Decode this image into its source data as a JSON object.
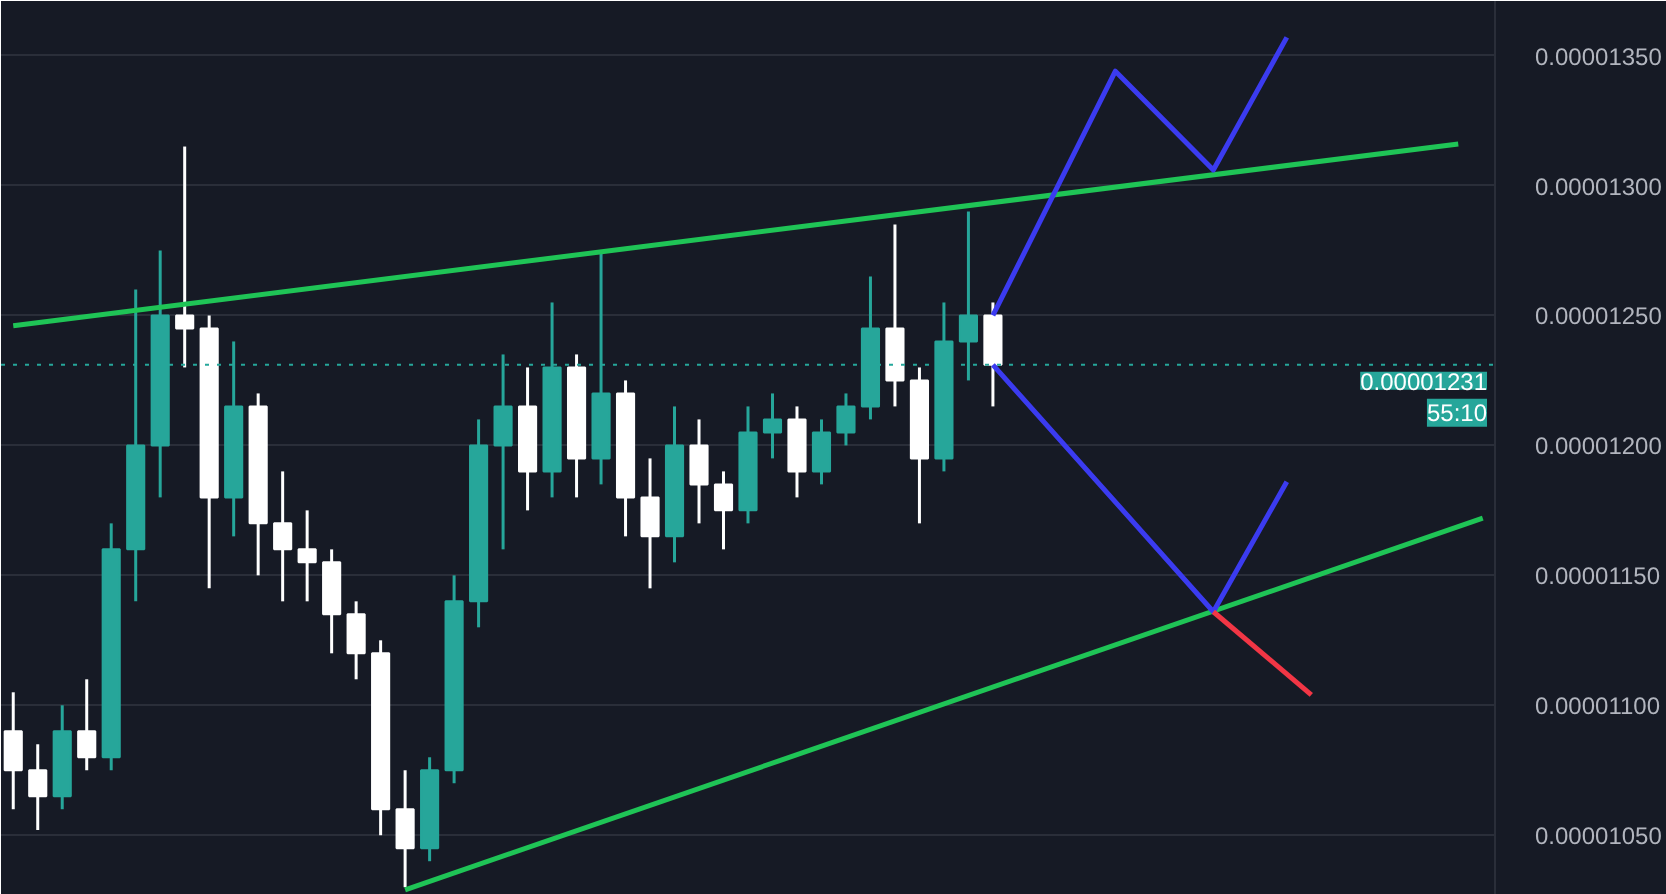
{
  "chart_data": {
    "type": "candlestick",
    "categories": [
      null,
      null,
      null,
      null,
      null,
      null,
      null,
      null,
      null,
      null,
      null,
      null,
      null,
      null,
      null,
      null,
      null,
      null,
      null,
      null,
      null,
      null,
      null,
      null,
      null,
      null,
      null,
      null,
      null,
      null,
      null,
      null,
      null,
      null,
      null,
      null,
      null,
      null,
      null,
      null,
      null,
      null,
      null,
      null,
      null,
      null,
      null,
      null,
      null,
      null,
      null,
      null,
      null,
      null,
      null,
      null,
      null,
      null,
      null,
      null,
      null
    ],
    "ohlc": [
      [
        1.09e-05,
        1.105e-05,
        1.06e-05,
        1.075e-05
      ],
      [
        1.075e-05,
        1.085e-05,
        1.052e-05,
        1.065e-05
      ],
      [
        1.065e-05,
        1.1e-05,
        1.06e-05,
        1.09e-05
      ],
      [
        1.09e-05,
        1.11e-05,
        1.075e-05,
        1.08e-05
      ],
      [
        1.08e-05,
        1.17e-05,
        1.075e-05,
        1.16e-05
      ],
      [
        1.16e-05,
        1.26e-05,
        1.14e-05,
        1.2e-05
      ],
      [
        1.2e-05,
        1.275e-05,
        1.18e-05,
        1.25e-05
      ],
      [
        1.25e-05,
        1.315e-05,
        1.23e-05,
        1.245e-05
      ],
      [
        1.245e-05,
        1.25e-05,
        1.145e-05,
        1.18e-05
      ],
      [
        1.18e-05,
        1.24e-05,
        1.165e-05,
        1.215e-05
      ],
      [
        1.215e-05,
        1.22e-05,
        1.15e-05,
        1.17e-05
      ],
      [
        1.17e-05,
        1.19e-05,
        1.14e-05,
        1.16e-05
      ],
      [
        1.16e-05,
        1.175e-05,
        1.14e-05,
        1.155e-05
      ],
      [
        1.155e-05,
        1.16e-05,
        1.12e-05,
        1.135e-05
      ],
      [
        1.135e-05,
        1.14e-05,
        1.11e-05,
        1.12e-05
      ],
      [
        1.12e-05,
        1.125e-05,
        1.05e-05,
        1.06e-05
      ],
      [
        1.06e-05,
        1.075e-05,
        1.03e-05,
        1.045e-05
      ],
      [
        1.045e-05,
        1.08e-05,
        1.04e-05,
        1.075e-05
      ],
      [
        1.075e-05,
        1.15e-05,
        1.07e-05,
        1.14e-05
      ],
      [
        1.14e-05,
        1.21e-05,
        1.13e-05,
        1.2e-05
      ],
      [
        1.2e-05,
        1.235e-05,
        1.16e-05,
        1.215e-05
      ],
      [
        1.215e-05,
        1.23e-05,
        1.175e-05,
        1.19e-05
      ],
      [
        1.19e-05,
        1.255e-05,
        1.18e-05,
        1.23e-05
      ],
      [
        1.23e-05,
        1.235e-05,
        1.18e-05,
        1.195e-05
      ],
      [
        1.195e-05,
        1.275e-05,
        1.185e-05,
        1.22e-05
      ],
      [
        1.22e-05,
        1.225e-05,
        1.165e-05,
        1.18e-05
      ],
      [
        1.18e-05,
        1.195e-05,
        1.145e-05,
        1.165e-05
      ],
      [
        1.165e-05,
        1.215e-05,
        1.155e-05,
        1.2e-05
      ],
      [
        1.2e-05,
        1.21e-05,
        1.17e-05,
        1.185e-05
      ],
      [
        1.185e-05,
        1.19e-05,
        1.16e-05,
        1.175e-05
      ],
      [
        1.175e-05,
        1.215e-05,
        1.17e-05,
        1.205e-05
      ],
      [
        1.205e-05,
        1.22e-05,
        1.195e-05,
        1.21e-05
      ],
      [
        1.21e-05,
        1.215e-05,
        1.18e-05,
        1.19e-05
      ],
      [
        1.19e-05,
        1.21e-05,
        1.185e-05,
        1.205e-05
      ],
      [
        1.205e-05,
        1.22e-05,
        1.2e-05,
        1.215e-05
      ],
      [
        1.215e-05,
        1.265e-05,
        1.21e-05,
        1.245e-05
      ],
      [
        1.245e-05,
        1.285e-05,
        1.215e-05,
        1.225e-05
      ],
      [
        1.225e-05,
        1.23e-05,
        1.17e-05,
        1.195e-05
      ],
      [
        1.195e-05,
        1.255e-05,
        1.19e-05,
        1.24e-05
      ],
      [
        1.24e-05,
        1.29e-05,
        1.225e-05,
        1.25e-05
      ],
      [
        1.25e-05,
        1.255e-05,
        1.215e-05,
        1.231e-05
      ],
      null,
      null,
      null,
      null,
      null,
      null,
      null,
      null,
      null,
      null,
      null,
      null,
      null,
      null,
      null,
      null,
      null,
      null,
      null,
      null
    ],
    "colors": [
      "#ffffff",
      "#ffffff",
      "#26a69a",
      "#ffffff",
      "#26a69a",
      "#26a69a",
      "#26a69a",
      "#ffffff",
      "#ffffff",
      "#26a69a",
      "#ffffff",
      "#ffffff",
      "#ffffff",
      "#ffffff",
      "#ffffff",
      "#ffffff",
      "#ffffff",
      "#26a69a",
      "#26a69a",
      "#26a69a",
      "#26a69a",
      "#ffffff",
      "#26a69a",
      "#ffffff",
      "#26a69a",
      "#ffffff",
      "#ffffff",
      "#26a69a",
      "#ffffff",
      "#ffffff",
      "#26a69a",
      "#26a69a",
      "#ffffff",
      "#26a69a",
      "#26a69a",
      "#26a69a",
      "#ffffff",
      "#ffffff",
      "#26a69a",
      "#26a69a",
      "#ffffff",
      null,
      null,
      null,
      null,
      null,
      null,
      null,
      null,
      null,
      null,
      null,
      null,
      null,
      null,
      null,
      null,
      null,
      null,
      null,
      null
    ],
    "series": [
      {
        "type": "line",
        "color": "#1fc456",
        "values": [
          1.246e-05,
          null,
          null,
          null,
          null,
          null,
          null,
          null,
          null,
          null,
          null,
          null,
          null,
          null,
          null,
          null,
          null,
          null,
          null,
          null,
          null,
          null,
          null,
          null,
          null,
          null,
          null,
          null,
          null,
          null,
          null,
          null,
          null,
          null,
          null,
          null,
          null,
          null,
          null,
          null,
          null,
          null,
          null,
          null,
          null,
          null,
          null,
          null,
          null,
          null,
          null,
          null,
          null,
          null,
          null,
          null,
          null,
          null,
          null,
          1.316e-05,
          null
        ]
      },
      {
        "type": "line",
        "color": "#1fc456",
        "values": [
          null,
          null,
          null,
          null,
          null,
          null,
          null,
          null,
          null,
          null,
          null,
          null,
          null,
          null,
          null,
          null,
          1.029e-05,
          null,
          null,
          null,
          null,
          null,
          null,
          null,
          null,
          null,
          null,
          null,
          null,
          null,
          null,
          null,
          null,
          null,
          null,
          null,
          null,
          null,
          null,
          null,
          null,
          null,
          null,
          null,
          null,
          null,
          null,
          null,
          null,
          null,
          null,
          null,
          null,
          null,
          null,
          null,
          null,
          null,
          null,
          null,
          1.172e-05
        ]
      },
      {
        "type": "line",
        "color": "#3b3bf0",
        "values": [
          null,
          null,
          null,
          null,
          null,
          null,
          null,
          null,
          null,
          null,
          null,
          null,
          null,
          null,
          null,
          null,
          null,
          null,
          null,
          null,
          null,
          null,
          null,
          null,
          null,
          null,
          null,
          null,
          null,
          null,
          null,
          null,
          null,
          null,
          null,
          null,
          null,
          null,
          null,
          null,
          1.25e-05,
          null,
          null,
          null,
          null,
          1.344e-05,
          null,
          null,
          null,
          1.306e-05,
          null,
          null,
          1.357e-05,
          null,
          null,
          null,
          null,
          null,
          null,
          null,
          null
        ]
      },
      {
        "type": "line",
        "color": "#3b3bf0",
        "values": [
          null,
          null,
          null,
          null,
          null,
          null,
          null,
          null,
          null,
          null,
          null,
          null,
          null,
          null,
          null,
          null,
          null,
          null,
          null,
          null,
          null,
          null,
          null,
          null,
          null,
          null,
          null,
          null,
          null,
          null,
          null,
          null,
          null,
          null,
          null,
          null,
          null,
          null,
          null,
          null,
          1.231e-05,
          null,
          null,
          null,
          null,
          null,
          null,
          null,
          null,
          1.136e-05,
          null,
          null,
          1.186e-05,
          null,
          null,
          null,
          null,
          null,
          null,
          null,
          null
        ]
      },
      {
        "type": "line",
        "color": "#f23645",
        "values": [
          null,
          null,
          null,
          null,
          null,
          null,
          null,
          null,
          null,
          null,
          null,
          null,
          null,
          null,
          null,
          null,
          null,
          null,
          null,
          null,
          null,
          null,
          null,
          null,
          null,
          null,
          null,
          null,
          null,
          null,
          null,
          null,
          null,
          null,
          null,
          null,
          null,
          null,
          null,
          null,
          null,
          null,
          null,
          null,
          null,
          null,
          null,
          null,
          null,
          1.136e-05,
          null,
          null,
          null,
          1.104e-05,
          null,
          null,
          null,
          null,
          null,
          null,
          null
        ]
      }
    ],
    "ylim": [
      1.027e-05,
      1.371e-05
    ],
    "yticks": [
      {
        "value": 1.05e-05,
        "label": "0.00001050"
      },
      {
        "value": 1.1e-05,
        "label": "0.00001100"
      },
      {
        "value": 1.15e-05,
        "label": "0.00001150"
      },
      {
        "value": 1.2e-05,
        "label": "0.00001200"
      },
      {
        "value": 1.25e-05,
        "label": "0.00001250"
      },
      {
        "value": 1.3e-05,
        "label": "0.00001300"
      },
      {
        "value": 1.35e-05,
        "label": "0.00001350"
      }
    ],
    "ref_lines": [
      {
        "axis": "y",
        "value": 1.231e-05,
        "label": "0.00001231",
        "color": "#26a69a",
        "line_style": "dotted"
      }
    ],
    "annotations": [
      "55:10"
    ],
    "grid": "y",
    "tick_labels": "y",
    "marker": "none",
    "line_style": "solid"
  }
}
